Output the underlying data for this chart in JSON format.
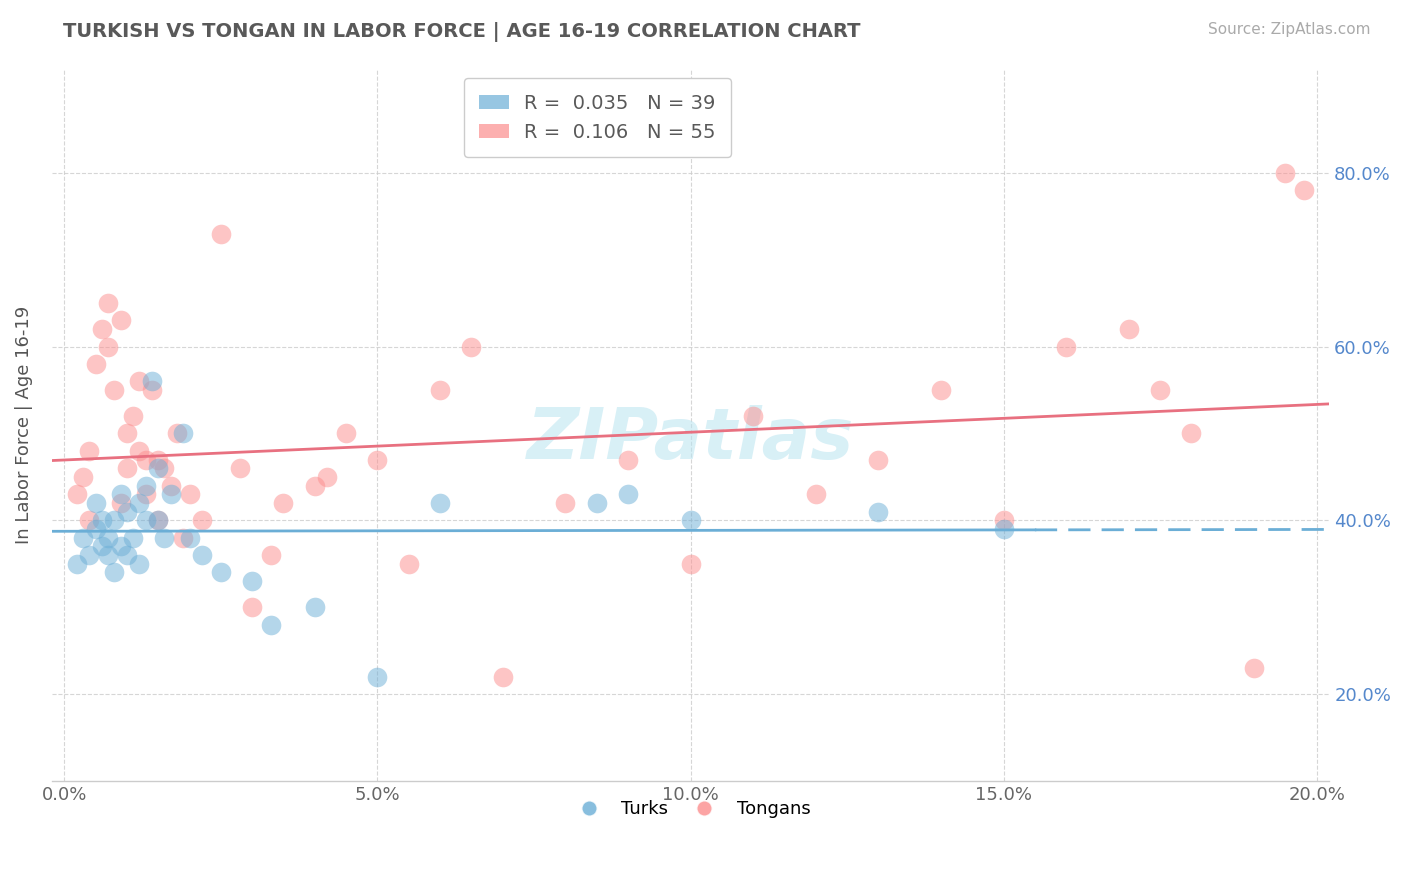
{
  "title": "TURKISH VS TONGAN IN LABOR FORCE | AGE 16-19 CORRELATION CHART",
  "source": "Source: ZipAtlas.com",
  "ylabel_label": "In Labor Force | Age 16-19",
  "xlim": [
    -0.002,
    0.202
  ],
  "ylim": [
    0.1,
    0.92
  ],
  "x_ticks": [
    0.0,
    0.05,
    0.1,
    0.15,
    0.2
  ],
  "x_tick_labels": [
    "0.0%",
    "5.0%",
    "10.0%",
    "15.0%",
    "20.0%"
  ],
  "y_ticks": [
    0.2,
    0.4,
    0.6,
    0.8
  ],
  "y_tick_labels": [
    "20.0%",
    "40.0%",
    "60.0%",
    "80.0%"
  ],
  "turks_color": "#6baed6",
  "tongans_color": "#fc8d8d",
  "turks_R": 0.035,
  "turks_N": 39,
  "tongans_R": 0.106,
  "tongans_N": 55,
  "background_color": "#ffffff",
  "grid_color": "#cccccc",
  "title_color": "#595959",
  "axis_color": "#aaaaaa",
  "right_axis_color": "#5588cc",
  "watermark_text": "ZIPatlas",
  "turks_x": [
    0.002,
    0.003,
    0.004,
    0.005,
    0.005,
    0.006,
    0.006,
    0.007,
    0.007,
    0.008,
    0.008,
    0.009,
    0.009,
    0.01,
    0.01,
    0.011,
    0.012,
    0.012,
    0.013,
    0.013,
    0.014,
    0.015,
    0.015,
    0.016,
    0.017,
    0.019,
    0.02,
    0.022,
    0.025,
    0.03,
    0.033,
    0.04,
    0.05,
    0.06,
    0.085,
    0.09,
    0.1,
    0.13,
    0.15
  ],
  "turks_y": [
    0.35,
    0.38,
    0.36,
    0.39,
    0.42,
    0.37,
    0.4,
    0.36,
    0.38,
    0.34,
    0.4,
    0.37,
    0.43,
    0.36,
    0.41,
    0.38,
    0.35,
    0.42,
    0.4,
    0.44,
    0.56,
    0.46,
    0.4,
    0.38,
    0.43,
    0.5,
    0.38,
    0.36,
    0.34,
    0.33,
    0.28,
    0.3,
    0.22,
    0.42,
    0.42,
    0.43,
    0.4,
    0.41,
    0.39
  ],
  "tongans_x": [
    0.002,
    0.003,
    0.004,
    0.004,
    0.005,
    0.006,
    0.007,
    0.007,
    0.008,
    0.009,
    0.009,
    0.01,
    0.01,
    0.011,
    0.012,
    0.012,
    0.013,
    0.013,
    0.014,
    0.015,
    0.015,
    0.016,
    0.017,
    0.018,
    0.019,
    0.02,
    0.022,
    0.025,
    0.028,
    0.03,
    0.033,
    0.035,
    0.04,
    0.042,
    0.045,
    0.05,
    0.055,
    0.06,
    0.065,
    0.07,
    0.08,
    0.09,
    0.1,
    0.11,
    0.12,
    0.13,
    0.14,
    0.15,
    0.16,
    0.17,
    0.175,
    0.18,
    0.19,
    0.195,
    0.198
  ],
  "tongans_y": [
    0.43,
    0.45,
    0.4,
    0.48,
    0.58,
    0.62,
    0.6,
    0.65,
    0.55,
    0.63,
    0.42,
    0.46,
    0.5,
    0.52,
    0.48,
    0.56,
    0.43,
    0.47,
    0.55,
    0.4,
    0.47,
    0.46,
    0.44,
    0.5,
    0.38,
    0.43,
    0.4,
    0.73,
    0.46,
    0.3,
    0.36,
    0.42,
    0.44,
    0.45,
    0.5,
    0.47,
    0.35,
    0.55,
    0.6,
    0.22,
    0.42,
    0.47,
    0.35,
    0.52,
    0.43,
    0.47,
    0.55,
    0.4,
    0.6,
    0.62,
    0.55,
    0.5,
    0.23,
    0.8,
    0.78
  ]
}
